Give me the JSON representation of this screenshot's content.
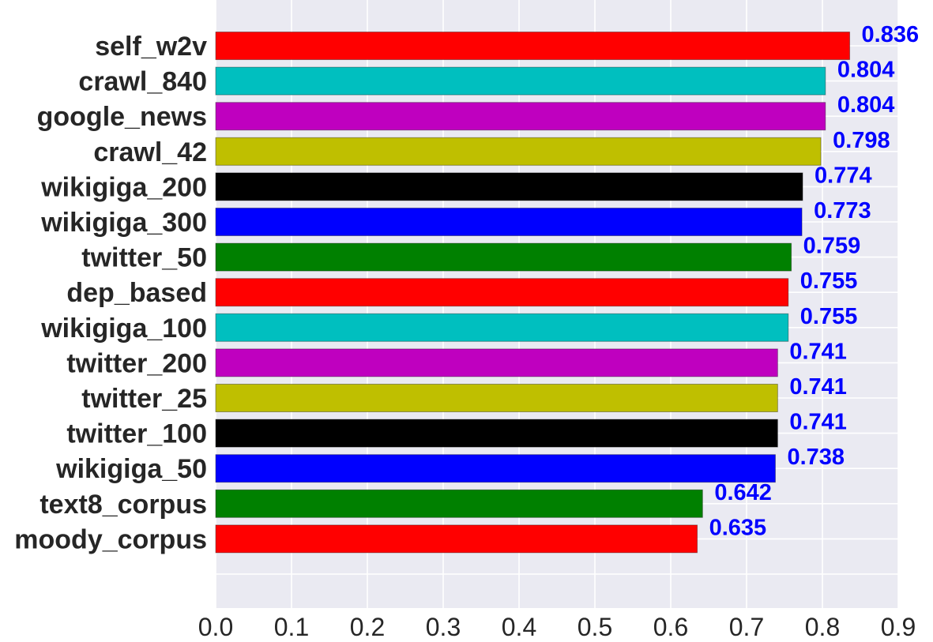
{
  "chart_data": {
    "type": "bar",
    "orientation": "horizontal",
    "categories": [
      "self_w2v",
      "crawl_840",
      "google_news",
      "crawl_42",
      "wikigiga_200",
      "wikigiga_300",
      "twitter_50",
      "dep_based",
      "wikigiga_100",
      "twitter_200",
      "twitter_25",
      "twitter_100",
      "wikigiga_50",
      "text8_corpus",
      "moody_corpus"
    ],
    "values": [
      0.836,
      0.804,
      0.804,
      0.798,
      0.774,
      0.773,
      0.759,
      0.755,
      0.755,
      0.741,
      0.741,
      0.741,
      0.738,
      0.642,
      0.635
    ],
    "value_labels": [
      "0.836",
      "0.804",
      "0.804",
      "0.798",
      "0.774",
      "0.773",
      "0.759",
      "0.755",
      "0.755",
      "0.741",
      "0.741",
      "0.741",
      "0.738",
      "0.642",
      "0.635"
    ],
    "bar_colors": [
      "#ff0000",
      "#00bfbf",
      "#bf00bf",
      "#bfbf00",
      "#000000",
      "#0000ff",
      "#008000",
      "#ff0000",
      "#00bfbf",
      "#bf00bf",
      "#bfbf00",
      "#000000",
      "#0000ff",
      "#008000",
      "#ff0000"
    ],
    "value_label_color": "#0000ff",
    "xlim": [
      0.0,
      0.9
    ],
    "xticks": [
      0.0,
      0.1,
      0.2,
      0.3,
      0.4,
      0.5,
      0.6,
      0.7,
      0.8,
      0.9
    ],
    "xtick_labels": [
      "0.0",
      "0.1",
      "0.2",
      "0.3",
      "0.4",
      "0.5",
      "0.6",
      "0.7",
      "0.8",
      "0.9"
    ],
    "title": "",
    "xlabel": "",
    "ylabel": "",
    "grid": true,
    "background_color": "#eaeaf2",
    "grid_color": "#ffffff"
  }
}
